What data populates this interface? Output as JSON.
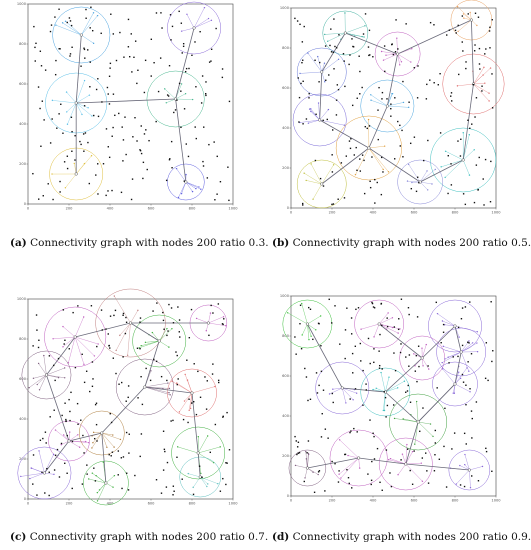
{
  "figures": [
    {
      "label": "(a)",
      "caption": "Connectivity graph with nodes 200 ratio 0.3.",
      "clusters": [
        {
          "cx": 260,
          "cy": 845,
          "r": 140,
          "color": "#4aa3e0"
        },
        {
          "cx": 810,
          "cy": 880,
          "r": 130,
          "color": "#8a6ad8"
        },
        {
          "cx": 235,
          "cy": 505,
          "r": 150,
          "color": "#5cc0e8"
        },
        {
          "cx": 720,
          "cy": 525,
          "r": 140,
          "color": "#4ab890"
        },
        {
          "cx": 235,
          "cy": 150,
          "r": 130,
          "color": "#e0c040"
        },
        {
          "cx": 770,
          "cy": 110,
          "r": 90,
          "color": "#6060e0"
        }
      ],
      "edges": [
        [
          0,
          2
        ],
        [
          2,
          3
        ],
        [
          3,
          1
        ],
        [
          3,
          5
        ],
        [
          2,
          4
        ]
      ]
    },
    {
      "label": "(b)",
      "caption": "Connectivity graph with nodes 200 ratio 0.5.",
      "clusters": [
        {
          "cx": 265,
          "cy": 875,
          "r": 110,
          "color": "#40b0a0"
        },
        {
          "cx": 520,
          "cy": 770,
          "r": 110,
          "color": "#c060c0"
        },
        {
          "cx": 150,
          "cy": 680,
          "r": 120,
          "color": "#6a7ad8"
        },
        {
          "cx": 880,
          "cy": 940,
          "r": 100,
          "color": "#e8a060"
        },
        {
          "cx": 890,
          "cy": 620,
          "r": 150,
          "color": "#e07070"
        },
        {
          "cx": 470,
          "cy": 510,
          "r": 130,
          "color": "#50a8e0"
        },
        {
          "cx": 140,
          "cy": 440,
          "r": 130,
          "color": "#7a6ad8"
        },
        {
          "cx": 380,
          "cy": 300,
          "r": 160,
          "color": "#e0a040"
        },
        {
          "cx": 840,
          "cy": 240,
          "r": 160,
          "color": "#40c0c0"
        },
        {
          "cx": 150,
          "cy": 120,
          "r": 120,
          "color": "#c0c040"
        },
        {
          "cx": 630,
          "cy": 130,
          "r": 110,
          "color": "#8a8ad8"
        }
      ],
      "edges": [
        [
          0,
          1
        ],
        [
          1,
          5
        ],
        [
          0,
          2
        ],
        [
          1,
          3
        ],
        [
          3,
          4
        ],
        [
          2,
          6
        ],
        [
          6,
          7
        ],
        [
          5,
          7
        ],
        [
          7,
          10
        ],
        [
          7,
          9
        ],
        [
          10,
          8
        ],
        [
          4,
          8
        ]
      ]
    },
    {
      "label": "(c)",
      "caption": "Connectivity graph with nodes 200 ratio 0.7.",
      "clusters": [
        {
          "cx": 500,
          "cy": 880,
          "r": 170,
          "color": "#c08080"
        },
        {
          "cx": 880,
          "cy": 880,
          "r": 90,
          "color": "#c060c0"
        },
        {
          "cx": 230,
          "cy": 810,
          "r": 150,
          "color": "#c060c0"
        },
        {
          "cx": 640,
          "cy": 790,
          "r": 130,
          "color": "#40b040"
        },
        {
          "cx": 90,
          "cy": 620,
          "r": 120,
          "color": "#806080"
        },
        {
          "cx": 570,
          "cy": 560,
          "r": 140,
          "color": "#806080"
        },
        {
          "cx": 800,
          "cy": 530,
          "r": 120,
          "color": "#e07070"
        },
        {
          "cx": 200,
          "cy": 290,
          "r": 100,
          "color": "#c060c0"
        },
        {
          "cx": 360,
          "cy": 330,
          "r": 110,
          "color": "#b08040"
        },
        {
          "cx": 80,
          "cy": 130,
          "r": 130,
          "color": "#8a6ad8"
        },
        {
          "cx": 380,
          "cy": 80,
          "r": 110,
          "color": "#40b040"
        },
        {
          "cx": 830,
          "cy": 230,
          "r": 130,
          "color": "#40b040"
        },
        {
          "cx": 840,
          "cy": 110,
          "r": 100,
          "color": "#60c0c0"
        }
      ],
      "edges": [
        [
          2,
          0
        ],
        [
          0,
          3
        ],
        [
          0,
          1
        ],
        [
          3,
          5
        ],
        [
          2,
          4
        ],
        [
          4,
          7
        ],
        [
          7,
          8
        ],
        [
          7,
          9
        ],
        [
          8,
          10
        ],
        [
          5,
          6
        ],
        [
          6,
          11
        ],
        [
          11,
          12
        ],
        [
          5,
          8
        ]
      ]
    },
    {
      "label": "(d)",
      "caption": "Connectivity graph with nodes 200 ratio 0.9.",
      "clusters": [
        {
          "cx": 80,
          "cy": 860,
          "r": 120,
          "color": "#40c040"
        },
        {
          "cx": 430,
          "cy": 860,
          "r": 120,
          "color": "#c060c0"
        },
        {
          "cx": 800,
          "cy": 850,
          "r": 130,
          "color": "#8a6ad8"
        },
        {
          "cx": 640,
          "cy": 690,
          "r": 110,
          "color": "#c060c0"
        },
        {
          "cx": 830,
          "cy": 720,
          "r": 120,
          "color": "#8a6ad8"
        },
        {
          "cx": 250,
          "cy": 540,
          "r": 130,
          "color": "#8a6ad8"
        },
        {
          "cx": 460,
          "cy": 520,
          "r": 120,
          "color": "#40c0c0"
        },
        {
          "cx": 800,
          "cy": 560,
          "r": 110,
          "color": "#8a6ad8"
        },
        {
          "cx": 620,
          "cy": 370,
          "r": 140,
          "color": "#40a040"
        },
        {
          "cx": 330,
          "cy": 190,
          "r": 140,
          "color": "#c060c0"
        },
        {
          "cx": 80,
          "cy": 140,
          "r": 90,
          "color": "#806080"
        },
        {
          "cx": 560,
          "cy": 160,
          "r": 130,
          "color": "#c060c0"
        },
        {
          "cx": 870,
          "cy": 130,
          "r": 100,
          "color": "#8a6ad8"
        }
      ],
      "edges": [
        [
          0,
          5
        ],
        [
          5,
          6
        ],
        [
          6,
          3
        ],
        [
          3,
          1
        ],
        [
          3,
          2
        ],
        [
          2,
          4
        ],
        [
          4,
          7
        ],
        [
          7,
          8
        ],
        [
          6,
          8
        ],
        [
          8,
          11
        ],
        [
          11,
          9
        ],
        [
          9,
          10
        ],
        [
          11,
          12
        ],
        [
          8,
          7
        ]
      ]
    }
  ],
  "axis": {
    "x_ticks": [
      "0",
      "200",
      "400",
      "600",
      "800",
      "1000"
    ],
    "y_ticks": [
      "0",
      "200",
      "400",
      "600",
      "800",
      "1000"
    ]
  }
}
